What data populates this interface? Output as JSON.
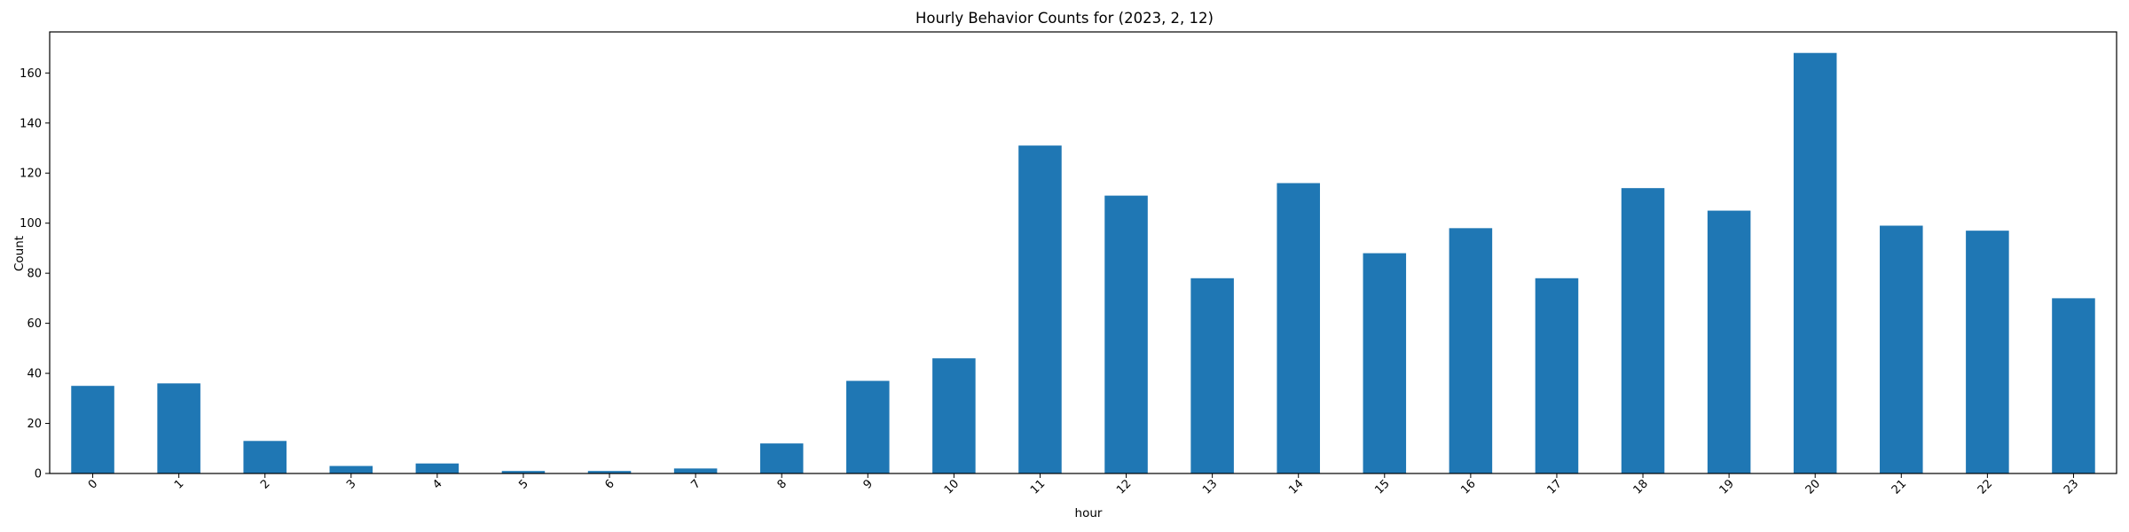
{
  "chart_data": {
    "type": "bar",
    "title": "Hourly Behavior Counts for (2023, 2, 12)",
    "xlabel": "hour",
    "ylabel": "Count",
    "categories": [
      "0",
      "1",
      "2",
      "3",
      "4",
      "5",
      "6",
      "7",
      "8",
      "9",
      "10",
      "11",
      "12",
      "13",
      "14",
      "15",
      "16",
      "17",
      "18",
      "19",
      "20",
      "21",
      "22",
      "23"
    ],
    "values": [
      35,
      36,
      13,
      3,
      4,
      1,
      1,
      2,
      12,
      37,
      46,
      131,
      111,
      78,
      116,
      88,
      98,
      78,
      114,
      105,
      168,
      99,
      97,
      70
    ],
    "ylim": [
      0,
      176.4
    ],
    "yticks": [
      0,
      20,
      40,
      60,
      80,
      100,
      120,
      140,
      160
    ],
    "bar_color": "#1f77b4",
    "grid": false,
    "legend": false
  }
}
